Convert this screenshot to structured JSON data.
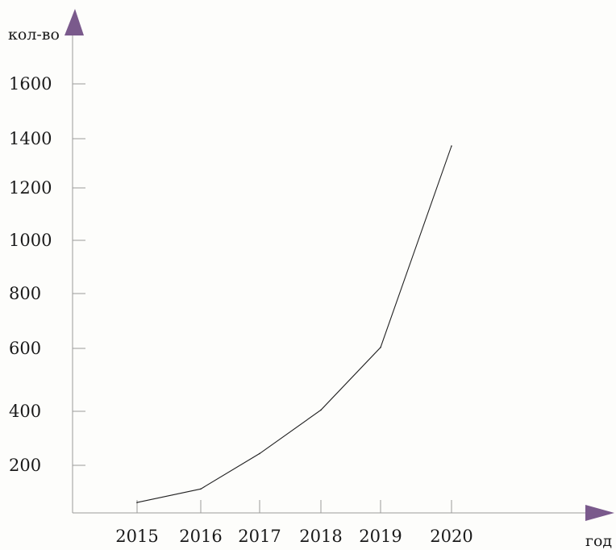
{
  "chart_data": {
    "type": "line",
    "xlabel": "год",
    "ylabel": "кол-во",
    "x": [
      "2015",
      "2016",
      "2017",
      "2018",
      "2019",
      "2020"
    ],
    "y_ticks": [
      200,
      400,
      600,
      800,
      1000,
      1200,
      1400,
      1600
    ],
    "series": [
      {
        "x": [
          2015,
          2016,
          2017,
          2018,
          2019,
          2020
        ],
        "values": [
          50,
          100,
          230,
          390,
          620,
          1360
        ]
      }
    ],
    "grid": false,
    "colors": {
      "axis": "#9a9a9a",
      "arrow": "#7a5a8c",
      "line": "#222222",
      "text": "#1a1a1a"
    }
  }
}
